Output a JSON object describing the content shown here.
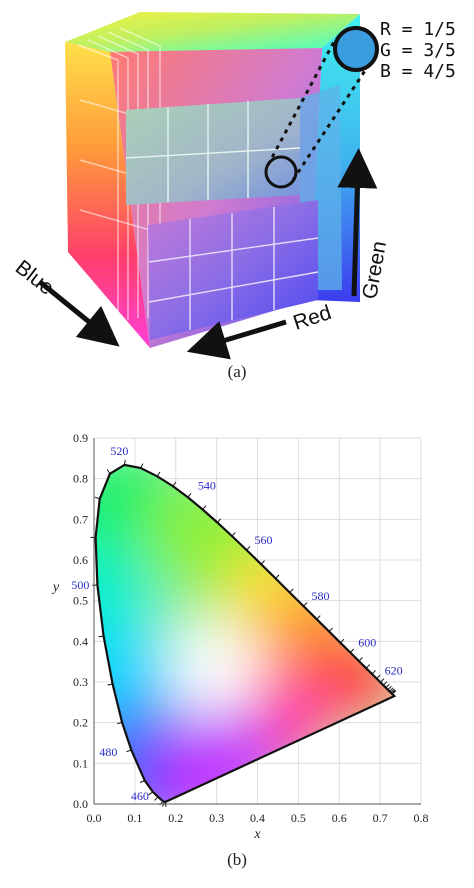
{
  "panel_a": {
    "caption": "(a)",
    "legend": {
      "swatch_color": "#3b9de0",
      "r": "R = 1/5",
      "g": "G = 3/5",
      "b": "B = 4/5"
    },
    "axes": {
      "blue": "Blue",
      "red": "Red",
      "green": "Green"
    }
  },
  "panel_b": {
    "caption": "(b)",
    "chart_data": {
      "type": "scatter",
      "title": "",
      "xlabel": "x",
      "ylabel": "y",
      "xlim": [
        0.0,
        0.8
      ],
      "ylim": [
        0.0,
        0.9
      ],
      "xticks": [
        "0.0",
        "0.1",
        "0.2",
        "0.3",
        "0.4",
        "0.5",
        "0.6",
        "0.7",
        "0.8"
      ],
      "yticks": [
        "0.0",
        "0.1",
        "0.2",
        "0.3",
        "0.4",
        "0.5",
        "0.6",
        "0.7",
        "0.8",
        "0.9"
      ],
      "grid": true,
      "series": [
        {
          "x": [
            0.1741,
            0.173,
            0.1689,
            0.1566,
            0.144,
            0.1241,
            0.0913,
            0.0687,
            0.0454,
            0.0235,
            0.0082,
            0.0039,
            0.0139,
            0.0389,
            0.0743,
            0.1142,
            0.1547,
            0.1929,
            0.2296,
            0.2658,
            0.3016,
            0.3373,
            0.3731,
            0.4087,
            0.4441,
            0.4788,
            0.5125,
            0.5448,
            0.5752,
            0.6029,
            0.627,
            0.6482,
            0.6658,
            0.6801,
            0.6915,
            0.7006,
            0.7079,
            0.714,
            0.719,
            0.723,
            0.726,
            0.7283,
            0.73,
            0.7347,
            0.1741
          ],
          "y": [
            0.005,
            0.0048,
            0.0069,
            0.0177,
            0.0297,
            0.0578,
            0.1327,
            0.2007,
            0.295,
            0.4127,
            0.5384,
            0.6548,
            0.7502,
            0.812,
            0.8338,
            0.8262,
            0.8059,
            0.7816,
            0.7543,
            0.7243,
            0.6923,
            0.6589,
            0.6245,
            0.5896,
            0.5547,
            0.5202,
            0.4866,
            0.4544,
            0.4242,
            0.3965,
            0.3725,
            0.3514,
            0.334,
            0.3197,
            0.3083,
            0.2993,
            0.292,
            0.2859,
            0.2809,
            0.277,
            0.274,
            0.2717,
            0.27,
            0.2653,
            0.005
          ]
        }
      ],
      "annotations": [
        {
          "label": "460",
          "x": 0.144,
          "y": 0.0297
        },
        {
          "label": "480",
          "x": 0.0913,
          "y": 0.1327
        },
        {
          "label": "500",
          "x": 0.0082,
          "y": 0.5384
        },
        {
          "label": "520",
          "x": 0.0743,
          "y": 0.8338
        },
        {
          "label": "540",
          "x": 0.2296,
          "y": 0.7543
        },
        {
          "label": "560",
          "x": 0.3731,
          "y": 0.6245
        },
        {
          "label": "580",
          "x": 0.5125,
          "y": 0.4866
        },
        {
          "label": "600",
          "x": 0.627,
          "y": 0.3725
        },
        {
          "label": "620",
          "x": 0.6915,
          "y": 0.3083
        }
      ],
      "label_color": "#2a2ac8"
    }
  }
}
